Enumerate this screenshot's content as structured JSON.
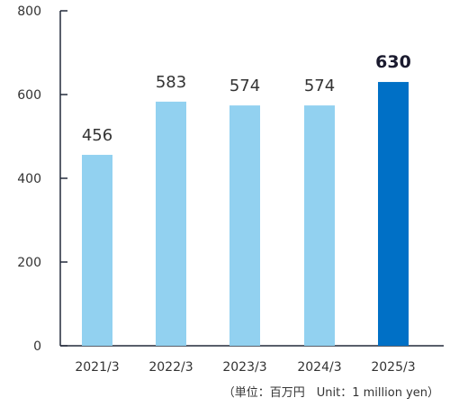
{
  "chart_data": {
    "type": "bar",
    "categories": [
      "2021/3",
      "2022/3",
      "2023/3",
      "2024/3",
      "2025/3"
    ],
    "values": [
      456,
      583,
      574,
      574,
      630
    ],
    "data_labels": [
      "456",
      "583",
      "574",
      "574",
      "630"
    ],
    "highlight_index": 4,
    "ylim": [
      0,
      800
    ],
    "yticks": [
      0,
      200,
      400,
      600,
      800
    ],
    "ytick_labels": [
      "0",
      "200",
      "400",
      "600",
      "800"
    ],
    "grid": false,
    "unit_note": "（単位：百万円　Unit：1 million yen）",
    "colors": {
      "bar": "#92d1f0",
      "highlight_bar": "#0070c6",
      "axis": "#222a3a"
    }
  }
}
